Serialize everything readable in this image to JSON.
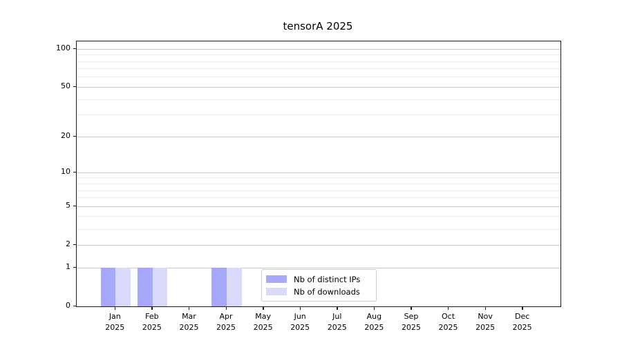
{
  "chart_data": {
    "type": "bar",
    "title": "tensorA 2025",
    "categories": [
      "Jan",
      "Feb",
      "Mar",
      "Apr",
      "May",
      "Jun",
      "Jul",
      "Aug",
      "Sep",
      "Oct",
      "Nov",
      "Dec"
    ],
    "category_year": "2025",
    "series": [
      {
        "name": "Nb of distinct IPs",
        "color": "#a8a8f8",
        "values": [
          1,
          1,
          0,
          1,
          0,
          0,
          0,
          0,
          0,
          0,
          0,
          0
        ]
      },
      {
        "name": "Nb of downloads",
        "color": "#d9d9f9",
        "values": [
          1,
          1,
          0,
          1,
          0,
          0,
          0,
          0,
          0,
          0,
          0,
          0
        ]
      }
    ],
    "xlabel": "",
    "ylabel": "",
    "yscale": "log10(1+y)",
    "ylim": [
      0,
      115
    ],
    "yticks": [
      0,
      1,
      2,
      5,
      10,
      20,
      50,
      100
    ],
    "minor_yticks": [
      3,
      4,
      6,
      7,
      8,
      9,
      30,
      40,
      60,
      70,
      80,
      90
    ],
    "grid": "horizontal, major and minor",
    "legend_position": "lower center-left inside plot"
  },
  "legend": {
    "items": [
      {
        "label": "Nb of distinct IPs"
      },
      {
        "label": "Nb of downloads"
      }
    ]
  },
  "colors": {
    "bar_distinct_ips": "#a8a8f8",
    "bar_downloads": "#d9d9f9",
    "major_grid": "#c9c9c9",
    "minor_grid": "#ededed",
    "axis": "#1a1a1a",
    "background": "#ffffff"
  }
}
